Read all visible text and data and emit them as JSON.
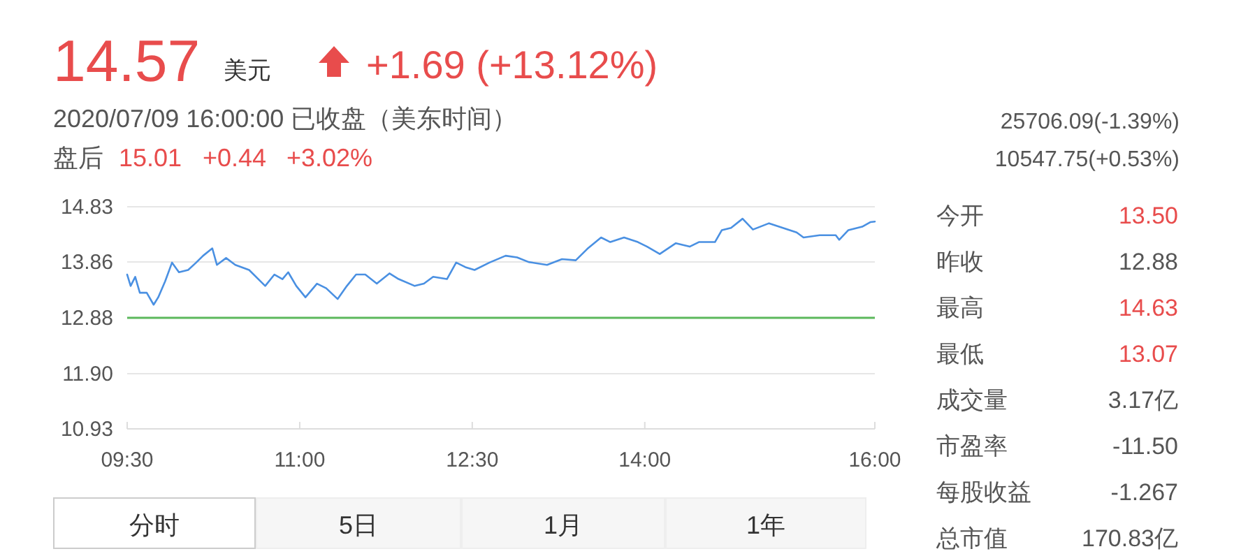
{
  "chart_data": {
    "type": "line",
    "title": "14.57",
    "x": [
      9.5,
      9.53,
      9.57,
      9.61,
      9.67,
      9.73,
      9.77,
      9.83,
      9.89,
      9.95,
      10.03,
      10.1,
      10.16,
      10.24,
      10.28,
      10.36,
      10.44,
      10.56,
      10.7,
      10.78,
      10.85,
      10.9,
      10.97,
      11.05,
      11.15,
      11.23,
      11.33,
      11.41,
      11.49,
      11.57,
      11.67,
      11.78,
      11.86,
      12.0,
      12.08,
      12.16,
      12.28,
      12.36,
      12.44,
      12.52,
      12.65,
      12.79,
      12.89,
      12.99,
      13.15,
      13.28,
      13.4,
      13.5,
      13.62,
      13.7,
      13.82,
      13.94,
      14.02,
      14.13,
      14.27,
      14.39,
      14.47,
      14.61,
      14.67,
      14.75,
      14.85,
      14.94,
      15.08,
      15.2,
      15.32,
      15.38,
      15.52,
      15.66,
      15.69,
      15.77,
      15.89,
      15.96,
      16.0
    ],
    "series": [
      {
        "color": "#4a90e2",
        "values": [
          13.64,
          13.44,
          13.6,
          13.32,
          13.32,
          13.11,
          13.24,
          13.52,
          13.85,
          13.68,
          13.72,
          13.85,
          13.97,
          14.1,
          13.81,
          13.93,
          13.81,
          13.72,
          13.44,
          13.64,
          13.56,
          13.68,
          13.44,
          13.24,
          13.48,
          13.4,
          13.21,
          13.44,
          13.64,
          13.64,
          13.48,
          13.66,
          13.56,
          13.44,
          13.48,
          13.6,
          13.56,
          13.85,
          13.77,
          13.72,
          13.85,
          13.97,
          13.94,
          13.86,
          13.81,
          13.91,
          13.89,
          14.09,
          14.29,
          14.21,
          14.29,
          14.21,
          14.13,
          14.0,
          14.19,
          14.13,
          14.21,
          14.21,
          14.42,
          14.46,
          14.62,
          14.43,
          14.54,
          14.46,
          14.38,
          14.29,
          14.33,
          14.33,
          14.25,
          14.42,
          14.48,
          14.56,
          14.57
        ]
      }
    ],
    "xlim": [
      9.5,
      16
    ],
    "xticks": [
      {
        "value": 9.5,
        "label": "09:30"
      },
      {
        "value": 11,
        "label": "11:00"
      },
      {
        "value": 12.5,
        "label": "12:30"
      },
      {
        "value": 14,
        "label": "14:00"
      },
      {
        "value": 16,
        "label": "16:00"
      }
    ],
    "ylim": [
      10.93,
      14.83
    ],
    "yticks": [
      10.93,
      {
        "value": 11.9,
        "label": "11.90"
      },
      12.88,
      13.86,
      14.83
    ],
    "grid": "y",
    "line_style": "solid",
    "marker": "none",
    "ref_lines": [
      {
        "axis": "y",
        "value": 12.88,
        "color": "#5cb85c"
      }
    ],
    "annotations": [
      "美元",
      "+1.69 (+13.12%)",
      "2020/07/09 16:00:00 已收盘（美东时间）",
      "盘后",
      "15.01",
      "+0.44",
      "+3.02%",
      "25706.09(-1.39%)",
      "10547.75(+0.53%)",
      "今开",
      "13.50",
      "昨收",
      "12.88",
      "最高",
      "14.63",
      "最低",
      "13.07",
      "成交量",
      "3.17亿",
      "市盈率",
      "-11.50",
      "每股收益",
      "-1.267",
      "总市值",
      "170.83亿",
      "分时",
      "5日",
      "1月",
      "1年"
    ]
  }
}
